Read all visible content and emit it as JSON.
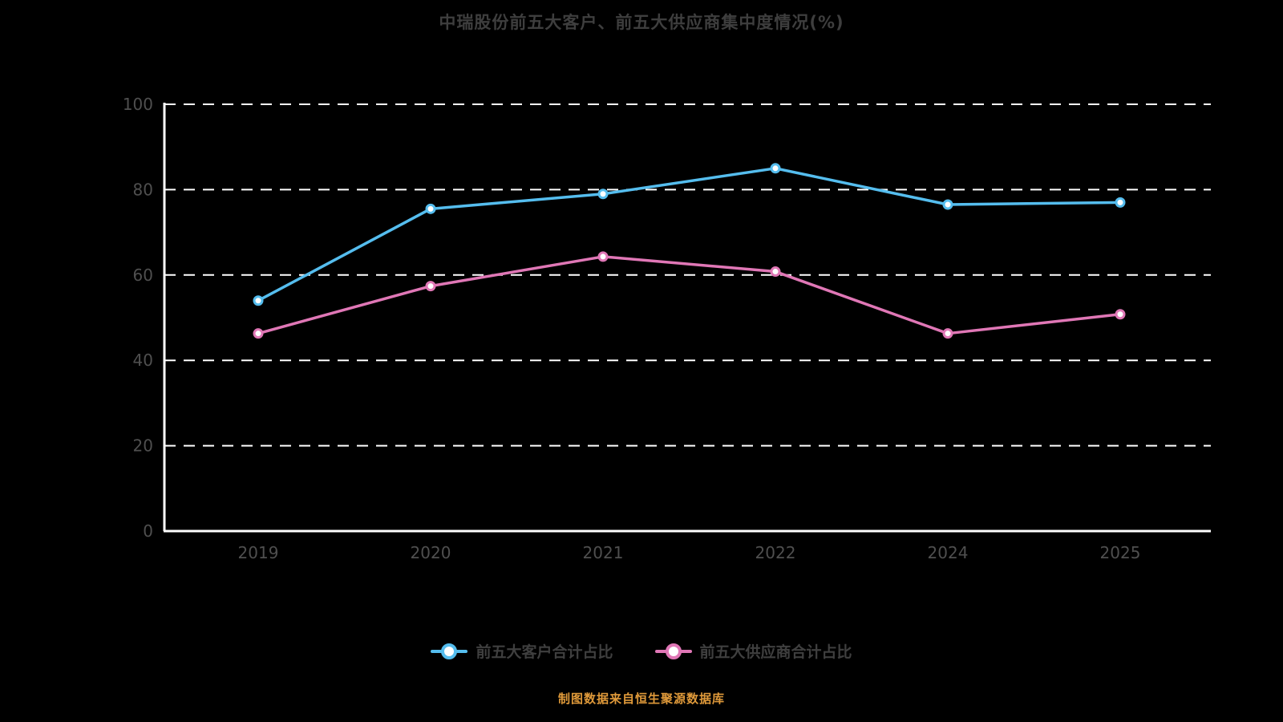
{
  "page": {
    "background": "#000000"
  },
  "title": {
    "text": "中瑞股份前五大客户、前五大供应商集中度情况(%)",
    "color": "#3e3e3e"
  },
  "caption": {
    "text": "制图数据来自恒生聚源数据库",
    "color": "#e09a3a"
  },
  "legend": {
    "items": [
      {
        "label": "前五大客户合计占比",
        "color": "#55bdee"
      },
      {
        "label": "前五大供应商合计占比",
        "color": "#e077b6"
      }
    ],
    "label_color": "#3f3f3f"
  },
  "chart_data": {
    "type": "line",
    "title": "中瑞股份前五大客户、前五大供应商集中度情况(%)",
    "categories": [
      "2019",
      "2020",
      "2021",
      "2022",
      "2024",
      "2025"
    ],
    "series": [
      {
        "name": "前五大客户合计占比",
        "color": "#55bdee",
        "values": [
          54,
          75.5,
          79,
          85,
          76.5,
          77
        ]
      },
      {
        "name": "前五大供应商合计占比",
        "color": "#e077b6",
        "values": [
          46.3,
          57.4,
          64.3,
          60.8,
          46.3,
          50.8
        ]
      }
    ],
    "xlabel": "",
    "ylabel": "",
    "ylim": [
      0,
      100
    ],
    "yticks": [
      0,
      20,
      40,
      60,
      80,
      100
    ],
    "grid": "horizontal-dashed",
    "grid_color": "#ffffff",
    "axis_color": "#ffffff",
    "tick_label_color": "#4f4f4f",
    "legend_position": "bottom",
    "marker_style": "hollow-circle"
  }
}
